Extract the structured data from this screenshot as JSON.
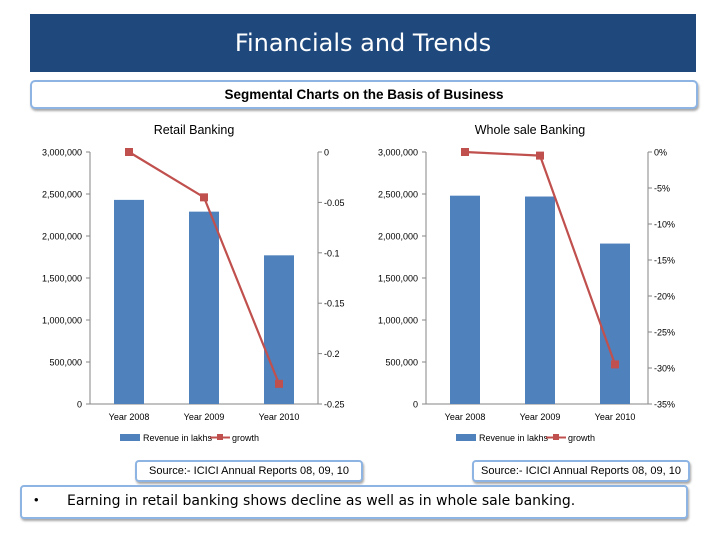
{
  "page": {
    "title": "Financials and Trends",
    "subtitle": "Segmental Charts on the Basis of Business",
    "note_bullet": "•",
    "note": "Earning in retail banking shows decline as well as in whole sale banking."
  },
  "colors": {
    "bar": "#4f81bd",
    "line": "#c0504d",
    "title_bg": "#1f497d",
    "box_border": "#8eb4e3"
  },
  "chart_data": [
    {
      "type": "bar+line",
      "title": "Retail  Banking",
      "categories": [
        "Year 2008",
        "Year 2009",
        "Year  2010"
      ],
      "series": [
        {
          "name": "Revenue in lakhs",
          "type": "bar",
          "axis": "left",
          "values": [
            2430000,
            2290000,
            1770000
          ]
        },
        {
          "name": "growth",
          "type": "line",
          "axis": "right",
          "values": [
            0,
            -0.045,
            -0.23
          ]
        }
      ],
      "y_left": {
        "ylim": [
          0,
          3000000
        ],
        "ticks": [
          "0",
          "500,000",
          "1,000,000",
          "1,500,000",
          "2,000,000",
          "2,500,000",
          "3,000,000"
        ]
      },
      "y_right": {
        "ylim": [
          -0.25,
          0
        ],
        "ticks": [
          "-0.25",
          "-0.2",
          "-0.15",
          "-0.1",
          "-0.05",
          "0"
        ]
      },
      "legend_position": "bottom",
      "source": "Source:- ICICI Annual Reports 08, 09, 10"
    },
    {
      "type": "bar+line",
      "title": "Whole sale Banking",
      "categories": [
        "Year 2008",
        "Year 2009",
        "Year  2010"
      ],
      "series": [
        {
          "name": "Revenue in lakhs",
          "type": "bar",
          "axis": "left",
          "values": [
            2480000,
            2470000,
            1910000
          ]
        },
        {
          "name": "growth",
          "type": "line",
          "axis": "right",
          "values": [
            0,
            -0.005,
            -0.295
          ]
        }
      ],
      "y_left": {
        "ylim": [
          0,
          3000000
        ],
        "ticks": [
          "0",
          "500,000",
          "1,000,000",
          "1,500,000",
          "2,000,000",
          "2,500,000",
          "3,000,000"
        ]
      },
      "y_right": {
        "ylim": [
          -0.35,
          0
        ],
        "ticks": [
          "-35%",
          "-30%",
          "-25%",
          "-20%",
          "-15%",
          "-10%",
          "-5%",
          "0%"
        ]
      },
      "legend_position": "bottom",
      "source": "Source:- ICICI Annual Reports 08, 09, 10"
    }
  ]
}
